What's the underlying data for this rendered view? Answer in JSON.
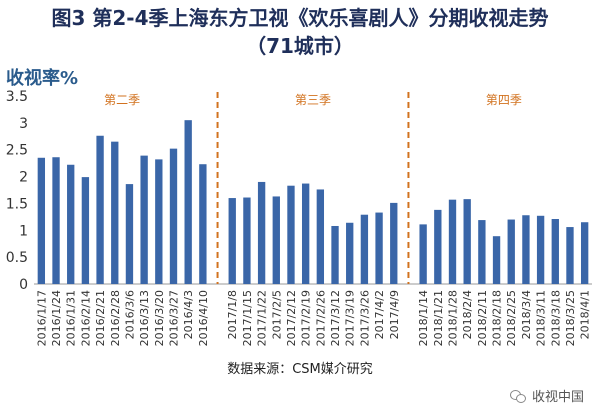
{
  "title_line1": "图3 第2-4季上海东方卫视《欢乐喜剧人》分期收视走势",
  "title_line2": "（71城市）",
  "ylabel": "收视率%",
  "source": "数据来源：CSM媒介研究",
  "watermark": "收视中国",
  "watermark_icon": "wechat-icon",
  "colors": {
    "bar": "#3a66a8",
    "season_text": "#d2721f",
    "divider": "#d2721f",
    "axis": "#999999",
    "tick_text": "#333333"
  },
  "chart_data": {
    "type": "bar",
    "ylabel": "收视率%",
    "ylim": [
      0,
      3.5
    ],
    "yticks": [
      0,
      0.5,
      1,
      1.5,
      2,
      2.5,
      3,
      3.5
    ],
    "grid": false,
    "groups": [
      {
        "name": "第二季",
        "categories": [
          "2016/1/17",
          "2016/1/24",
          "2016/1/31",
          "2016/2/14",
          "2016/2/21",
          "2016/2/28",
          "2016/3/6",
          "2016/3/13",
          "2016/3/20",
          "2016/3/27",
          "2016/4/3",
          "2016/4/10"
        ],
        "values": [
          2.35,
          2.36,
          2.22,
          1.99,
          2.76,
          2.65,
          1.86,
          2.39,
          2.32,
          2.52,
          3.05,
          2.23
        ]
      },
      {
        "name": "第三季",
        "categories": [
          "2017/1/8",
          "2017/1/15",
          "2017/1/22",
          "2017/2/5",
          "2017/2/12",
          "2017/2/19",
          "2017/2/26",
          "2017/3/12",
          "2017/3/19",
          "2017/3/26",
          "2017/4/2",
          "2017/4/9"
        ],
        "values": [
          1.6,
          1.61,
          1.9,
          1.63,
          1.83,
          1.87,
          1.76,
          1.08,
          1.14,
          1.29,
          1.33,
          1.51
        ]
      },
      {
        "name": "第四季",
        "categories": [
          "2018/1/14",
          "2018/1/21",
          "2018/1/28",
          "2018/2/4",
          "2018/2/11",
          "2018/2/18",
          "2018/2/25",
          "2018/3/4",
          "2018/3/11",
          "2018/3/18",
          "2018/3/25",
          "2018/4/1"
        ],
        "values": [
          1.11,
          1.38,
          1.57,
          1.58,
          1.19,
          0.89,
          1.2,
          1.28,
          1.27,
          1.21,
          1.06,
          1.15
        ]
      }
    ]
  }
}
